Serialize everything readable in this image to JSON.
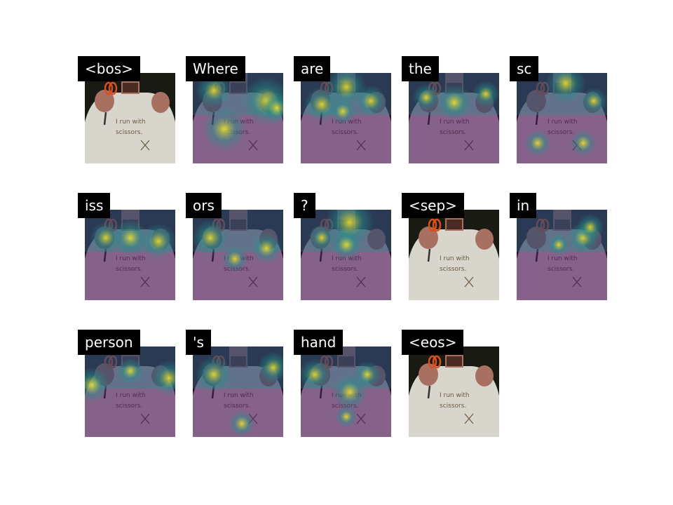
{
  "tokens": [
    {
      "label": "<bos>",
      "attention": false
    },
    {
      "label": "Where",
      "attention": true
    },
    {
      "label": "are",
      "attention": true
    },
    {
      "label": "the",
      "attention": true
    },
    {
      "label": "sc",
      "attention": true
    },
    {
      "label": "iss",
      "attention": true
    },
    {
      "label": "ors",
      "attention": true
    },
    {
      "label": "?",
      "attention": true
    },
    {
      "label": "<sep>",
      "attention": false
    },
    {
      "label": "in",
      "attention": true
    },
    {
      "label": "person",
      "attention": true
    },
    {
      "label": "'s",
      "attention": true
    },
    {
      "label": "hand",
      "attention": true
    },
    {
      "label": "<eos>",
      "attention": false
    }
  ],
  "shirt_text": [
    "I run with",
    "scissors."
  ],
  "colors": {
    "photo_background": "#1a1a14",
    "shirt": "#d8d5cc",
    "skin": "#a87060",
    "scissors": "#d9501e",
    "heatmap_low": "#440154",
    "heatmap_mid": "#21918c",
    "heatmap_high": "#fde725"
  }
}
